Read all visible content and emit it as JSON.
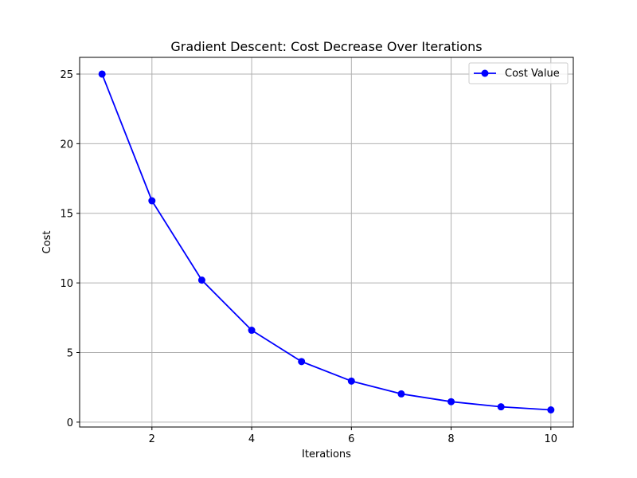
{
  "chart_data": {
    "type": "line",
    "title": "Gradient Descent: Cost Decrease Over Iterations",
    "xlabel": "Iterations",
    "ylabel": "Cost",
    "xlim": [
      0.55,
      10.45
    ],
    "ylim": [
      -0.35,
      26.2
    ],
    "xticks": [
      2,
      4,
      6,
      8,
      10
    ],
    "yticks": [
      0,
      5,
      10,
      15,
      20,
      25
    ],
    "grid": true,
    "legend_position": "top-right",
    "series": [
      {
        "name": "Cost Value",
        "color": "#0000ff",
        "marker": "circle",
        "x": [
          1,
          2,
          3,
          4,
          5,
          6,
          7,
          8,
          9,
          10
        ],
        "y": [
          25.0,
          15.9,
          10.2,
          6.6,
          4.35,
          2.95,
          2.03,
          1.47,
          1.1,
          0.88
        ]
      }
    ]
  }
}
